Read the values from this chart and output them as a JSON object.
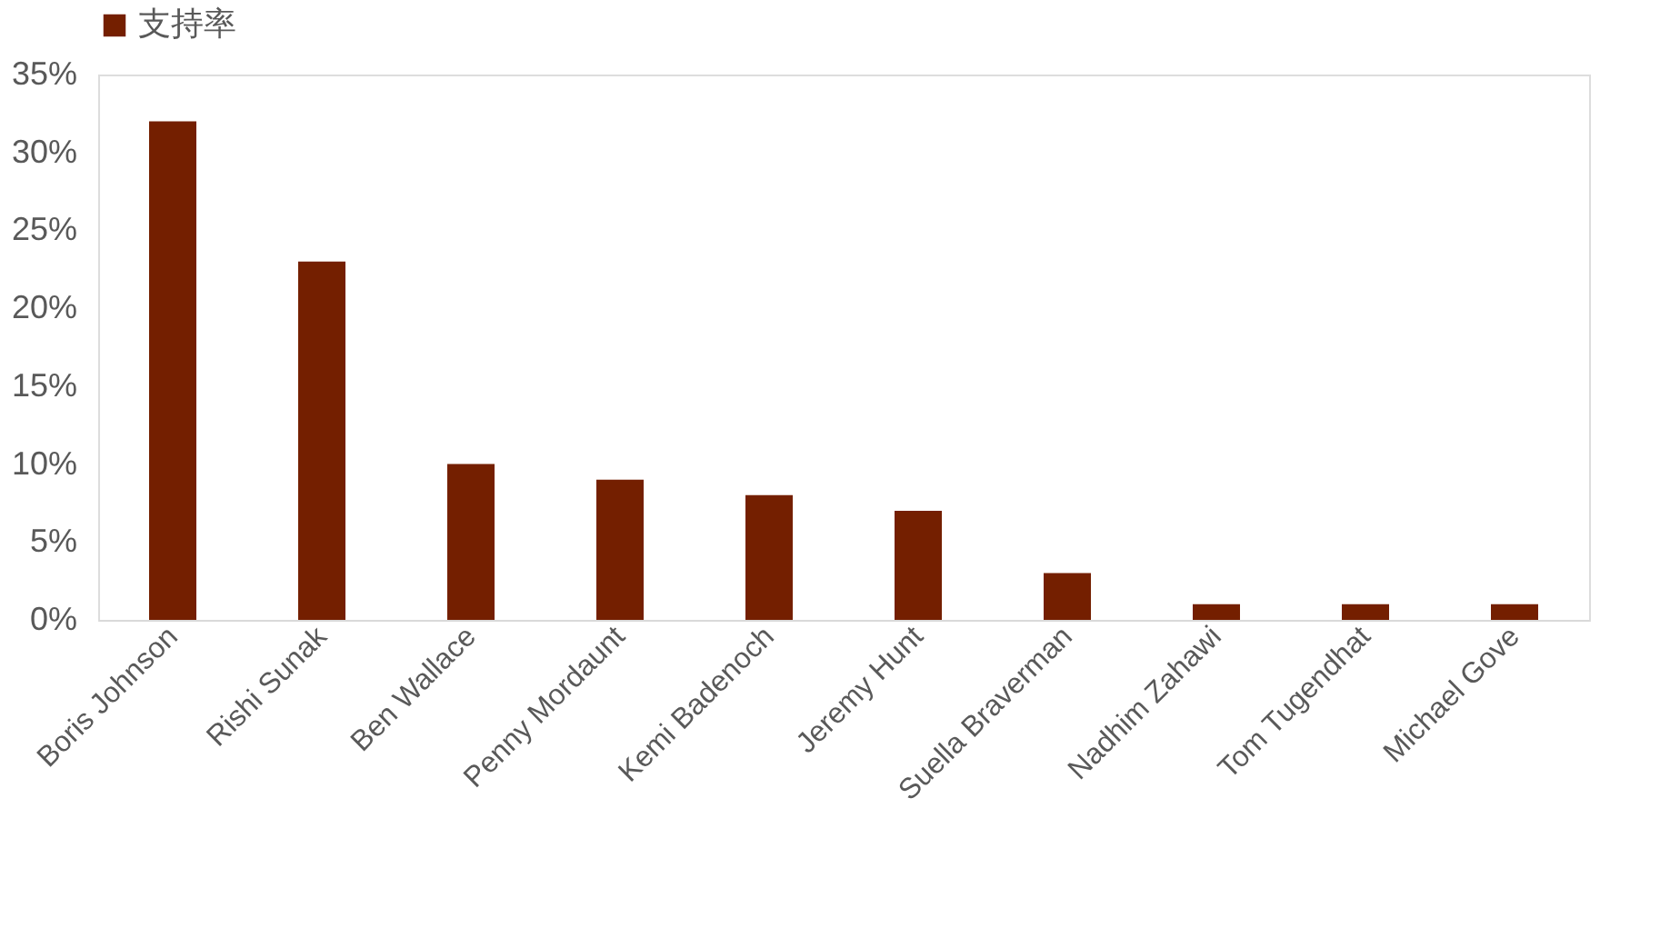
{
  "chart_data": {
    "type": "bar",
    "categories": [
      "Boris Johnson",
      "Rishi Sunak",
      "Ben Wallace",
      "Penny Mordaunt",
      "Kemi Badenoch",
      "Jeremy Hunt",
      "Suella Braverman",
      "Nadhim Zahawi",
      "Tom Tugendhat",
      "Michael Gove"
    ],
    "series": [
      {
        "name": "支持率",
        "color": "#741f00",
        "values": [
          32,
          23,
          10,
          9,
          8,
          7,
          3,
          1,
          1,
          1
        ]
      }
    ],
    "ylim": [
      0,
      35
    ],
    "yticks": [
      {
        "value": 0,
        "label": "0%"
      },
      {
        "value": 5,
        "label": "5%"
      },
      {
        "value": 10,
        "label": "10%"
      },
      {
        "value": 15,
        "label": "15%"
      },
      {
        "value": 20,
        "label": "20%"
      },
      {
        "value": 25,
        "label": "25%"
      },
      {
        "value": 30,
        "label": "30%"
      },
      {
        "value": 35,
        "label": "35%"
      }
    ],
    "grid": false,
    "legend": "top"
  }
}
